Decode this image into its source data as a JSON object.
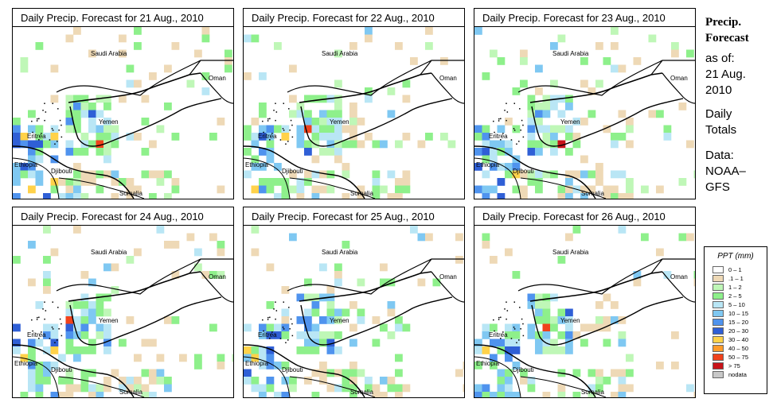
{
  "colors": {
    "land_outline": "#000000",
    "ocean": "#ffffff"
  },
  "panels": [
    {
      "title": "Daily Precip. Forecast for  21 Aug., 2010",
      "day": 21
    },
    {
      "title": "Daily Precip. Forecast for  22 Aug., 2010",
      "day": 22
    },
    {
      "title": "Daily Precip. Forecast for  23 Aug., 2010",
      "day": 23
    },
    {
      "title": "Daily Precip. Forecast for  24 Aug., 2010",
      "day": 24
    },
    {
      "title": "Daily Precip. Forecast for  25 Aug., 2010",
      "day": 25
    },
    {
      "title": "Daily Precip. Forecast for  26 Aug., 2010",
      "day": 26
    }
  ],
  "map_labels": {
    "saudi": "Saudi Arabia",
    "oman": "Oman",
    "yemen": "Yemen",
    "eritrea": "Eritrea",
    "ethiopia": "Ethiopia",
    "djibouti": "Djibouti",
    "somalia": "Somalia"
  },
  "side": {
    "title_line1": "Precip.",
    "title_line2": "Forecast",
    "asof_line1": "as of:",
    "asof_line2": "21 Aug.",
    "asof_line3": "2010",
    "totals_line1": "Daily",
    "totals_line2": "Totals",
    "data_line1": "Data:",
    "data_line2": "NOAA–",
    "data_line3": "GFS"
  },
  "legend": {
    "title": "PPT (mm)",
    "items": [
      {
        "label": "0 – 1",
        "color": "#ffffff"
      },
      {
        "label": ".1 – 1",
        "color": "#eed9b6"
      },
      {
        "label": "1 – 2",
        "color": "#bff7b7"
      },
      {
        "label": "2 – 5",
        "color": "#8ef08b"
      },
      {
        "label": "5 – 10",
        "color": "#b9e6f5"
      },
      {
        "label": "10 – 15",
        "color": "#7fc8f2"
      },
      {
        "label": "15 – 20",
        "color": "#4f93ee"
      },
      {
        "label": "20 – 30",
        "color": "#2f5fd6"
      },
      {
        "label": "30 – 40",
        "color": "#ffd24a"
      },
      {
        "label": "40 – 50",
        "color": "#ff9b2a"
      },
      {
        "label": "50 – 75",
        "color": "#f0421c"
      },
      {
        "label": "> 75",
        "color": "#c8141a"
      },
      {
        "label": "nodata",
        "color": "#c8c8c8"
      }
    ]
  }
}
